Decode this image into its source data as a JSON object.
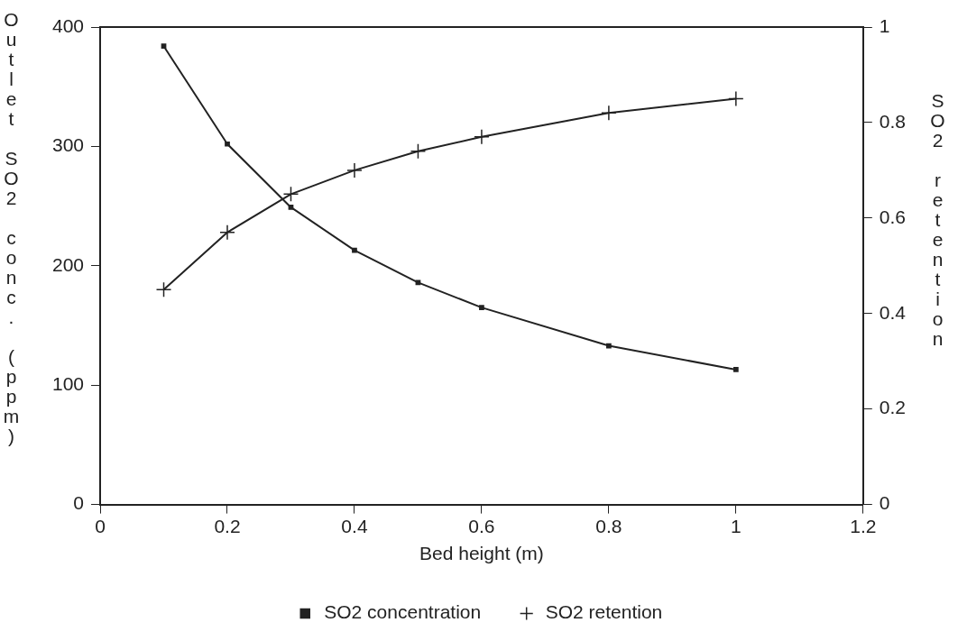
{
  "chart_data": {
    "type": "line",
    "xlabel": "Bed height (m)",
    "ylabel": "Outlet SO2 conc. (ppm)",
    "y2label": "SO2 retention",
    "x": [
      0.1,
      0.2,
      0.3,
      0.4,
      0.5,
      0.6,
      0.8,
      1.0
    ],
    "series": [
      {
        "name": "SO2 concentration",
        "color": "#222222",
        "marker": "square",
        "values": [
          384,
          302,
          249,
          213,
          186,
          165,
          133,
          113
        ]
      },
      {
        "name": "SO2 retention",
        "color": "#222222",
        "marker": "cross",
        "axis": "y2",
        "values": [
          0.45,
          0.57,
          0.65,
          0.7,
          0.74,
          0.77,
          0.82,
          0.85
        ]
      }
    ],
    "xlim": [
      0,
      1.2
    ],
    "xticks": [
      0,
      0.2,
      0.4,
      0.6,
      0.8,
      1,
      1.2
    ],
    "ylim": [
      0,
      400
    ],
    "yticks": [
      0,
      100,
      200,
      300,
      400
    ],
    "y2lim": [
      0,
      1
    ],
    "y2ticks": [
      0,
      0.2,
      0.4,
      0.6,
      0.8,
      1
    ],
    "grid": false,
    "legend": "bottom",
    "line_style": "solid"
  }
}
